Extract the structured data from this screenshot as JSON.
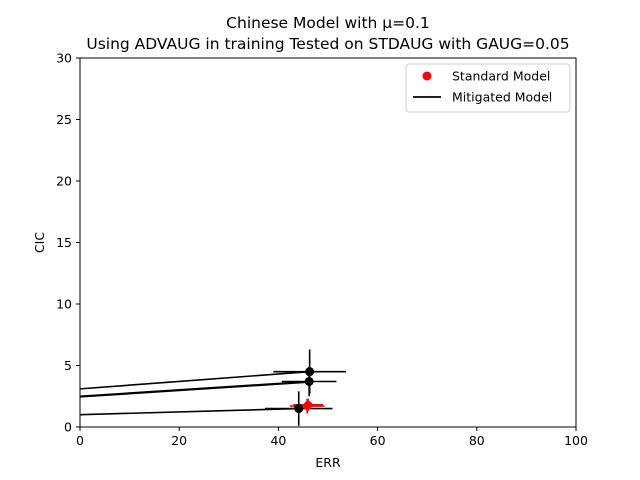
{
  "chart_data": {
    "type": "scatter",
    "title": "Chinese Model with μ=0.1",
    "subtitle": "Using ADVAUG in training Tested on STDAUG with GAUG=0.05",
    "xlabel": "ERR",
    "ylabel": "CIC",
    "xlim": [
      0,
      100
    ],
    "ylim": [
      0,
      30
    ],
    "xticks": [
      "0",
      "20",
      "40",
      "60",
      "80",
      "100"
    ],
    "yticks": [
      "0",
      "5",
      "10",
      "15",
      "20",
      "25",
      "30"
    ],
    "grid": false,
    "legend_position": "top-right",
    "colors": {
      "standard": "#ff0000",
      "mitigated": "#000000"
    },
    "series": [
      {
        "name": "Standard Model",
        "kind": "points",
        "points": [
          {
            "x": 45.8,
            "y": 1.7,
            "xerr": 3.5,
            "yerr": 0.6
          },
          {
            "x": 46.0,
            "y": 1.8,
            "xerr": 3.0,
            "yerr": 0.5
          }
        ]
      },
      {
        "name": "Mitigated Model",
        "kind": "lines",
        "points": [
          {
            "x": 46.3,
            "y": 4.5,
            "xerr": 7.3,
            "yerr": 1.8
          },
          {
            "x": 46.2,
            "y": 3.7,
            "xerr": 5.5,
            "yerr": 1.2
          },
          {
            "x": 44.1,
            "y": 1.5,
            "xerr": 6.8,
            "yerr": 1.4
          }
        ],
        "lines": [
          {
            "x1": 0,
            "y1": 3.1,
            "x2": 46.3,
            "y2": 4.5
          },
          {
            "x1": 0,
            "y1": 2.5,
            "x2": 46.2,
            "y2": 3.7
          },
          {
            "x1": 0,
            "y1": 2.45,
            "x2": 46.2,
            "y2": 3.65
          },
          {
            "x1": 0,
            "y1": 1.0,
            "x2": 44.1,
            "y2": 1.5
          }
        ]
      }
    ]
  }
}
